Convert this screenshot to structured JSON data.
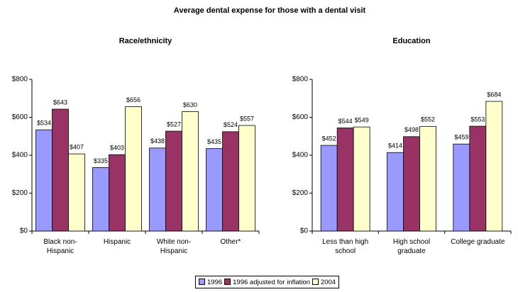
{
  "title": "Average dental expense for those with a dental visit",
  "chart_data": [
    {
      "type": "bar",
      "title": "Race/ethnicity",
      "categories": [
        "Black non-Hispanic",
        "Hispanic",
        "White non-Hispanic",
        "Other*"
      ],
      "series": [
        {
          "name": "1996",
          "color": "#9999ff",
          "values": [
            534,
            335,
            438,
            435
          ],
          "value_labels": [
            "$534",
            "$335",
            "$438",
            "$435"
          ]
        },
        {
          "name": "1996 adjusted for inflation",
          "color": "#993366",
          "values": [
            643,
            403,
            527,
            524
          ],
          "value_labels": [
            "$643",
            "$403",
            "$527",
            "$524"
          ]
        },
        {
          "name": "2004",
          "color": "#ffffcc",
          "values": [
            407,
            656,
            630,
            557
          ],
          "value_labels": [
            "$407",
            "$656",
            "$630",
            "$557"
          ]
        }
      ],
      "ylim": [
        0,
        800
      ],
      "yticks": [
        {
          "value": 0,
          "label": "$0"
        },
        {
          "value": 200,
          "label": "$200"
        },
        {
          "value": 400,
          "label": "$400"
        },
        {
          "value": 600,
          "label": "$600"
        },
        {
          "value": 800,
          "label": "$800"
        }
      ]
    },
    {
      "type": "bar",
      "title": "Education",
      "categories": [
        "Less than high school",
        "High school graduate",
        "College graduate"
      ],
      "series": [
        {
          "name": "1996",
          "color": "#9999ff",
          "values": [
            452,
            414,
            459
          ],
          "value_labels": [
            "$452",
            "$414",
            "$459"
          ]
        },
        {
          "name": "1996 adjusted for inflation",
          "color": "#993366",
          "values": [
            544,
            498,
            553
          ],
          "value_labels": [
            "$544",
            "$498",
            "$553"
          ]
        },
        {
          "name": "2004",
          "color": "#ffffcc",
          "values": [
            549,
            552,
            684
          ],
          "value_labels": [
            "$549",
            "$552",
            "$684"
          ]
        }
      ],
      "ylim": [
        0,
        800
      ],
      "yticks": [
        {
          "value": 0,
          "label": "$0"
        },
        {
          "value": 200,
          "label": "$200"
        },
        {
          "value": 400,
          "label": "$400"
        },
        {
          "value": 600,
          "label": "$600"
        },
        {
          "value": 800,
          "label": "$800"
        }
      ]
    }
  ]
}
